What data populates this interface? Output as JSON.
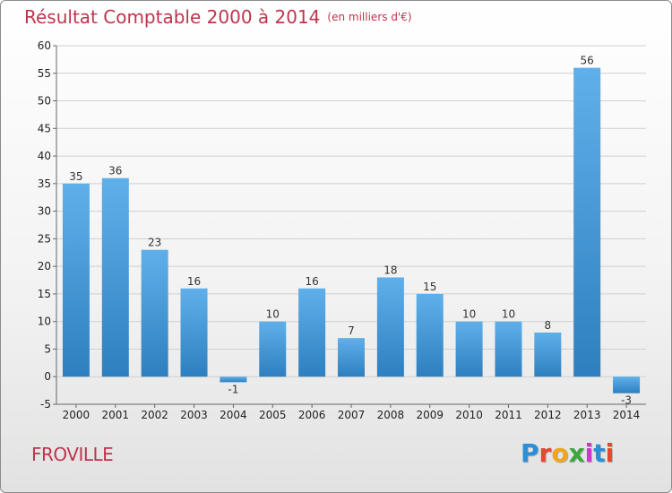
{
  "header": {
    "title": "Résultat Comptable 2000 à 2014",
    "subtitle": "(en milliers d'€)"
  },
  "footer": {
    "town": "FROVILLE",
    "logo_letters": [
      "P",
      "r",
      "o",
      "x",
      "i",
      "t",
      "i"
    ],
    "logo_colors": [
      "#2a8fd6",
      "#e8462f",
      "#f2a51c",
      "#3aa83a",
      "#c43cc7",
      "#2a8fd6",
      "#e8462f"
    ]
  },
  "colors": {
    "title": "#c0344d",
    "bar_top": "#5fb0ea",
    "bar_bottom": "#2e7fbf",
    "grid": "#d0d0d0",
    "axis": "#666666"
  },
  "chart_data": {
    "type": "bar",
    "categories": [
      "2000",
      "2001",
      "2002",
      "2003",
      "2004",
      "2005",
      "2006",
      "2007",
      "2008",
      "2009",
      "2010",
      "2011",
      "2012",
      "2013",
      "2014"
    ],
    "values": [
      35,
      36,
      23,
      16,
      -1,
      10,
      16,
      7,
      18,
      15,
      10,
      10,
      8,
      56,
      -3
    ],
    "value_labels": [
      "35",
      "36",
      "23",
      "16",
      "-1",
      "10",
      "16",
      "7",
      "18",
      "15",
      "10",
      "10",
      "8",
      "56",
      "-3"
    ],
    "ylim": [
      -5,
      60
    ],
    "yticks": [
      -5,
      0,
      5,
      10,
      15,
      20,
      25,
      30,
      35,
      40,
      45,
      50,
      55,
      60
    ],
    "grid": true
  }
}
